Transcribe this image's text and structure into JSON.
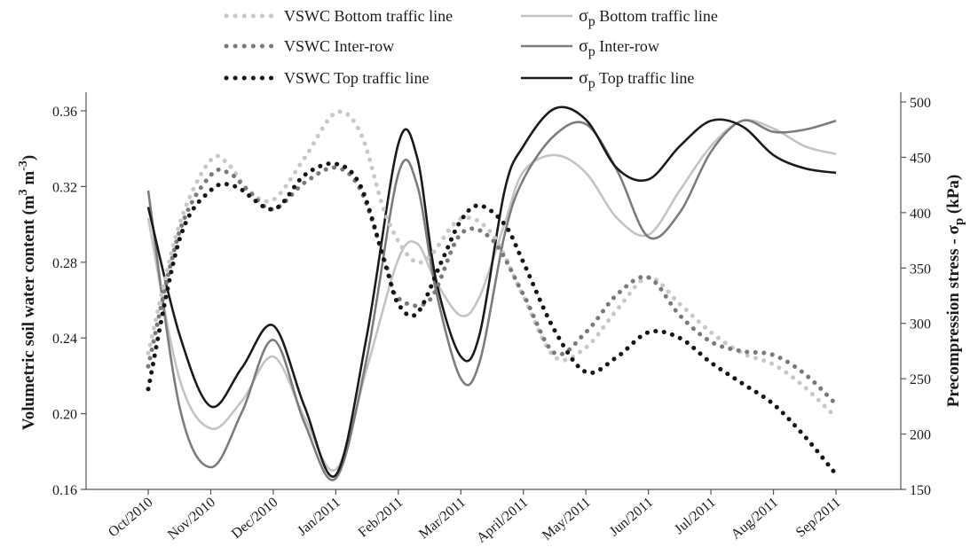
{
  "chart_data": {
    "type": "line",
    "title": "",
    "categories": [
      "Oct/2010",
      "Nov/2010",
      "Dec/2010",
      "Jan/2011",
      "Feb/2011",
      "Mar/2011",
      "April/2011",
      "May/2011",
      "Jun/2011",
      "Jul/2011",
      "Aug/2011",
      "Sep/2011"
    ],
    "y_left": {
      "label_prefix": "Volumetric soil water content (m",
      "label_sup1": "3",
      "label_mid": " m",
      "label_sup2": "-3",
      "label_suffix": ")",
      "range": [
        0.16,
        0.37
      ],
      "ticks": [
        "0.16",
        "0.20",
        "0.24",
        "0.28",
        "0.32",
        "0.36"
      ],
      "tick_values": [
        0.16,
        0.2,
        0.24,
        0.28,
        0.32,
        0.36
      ]
    },
    "y_right": {
      "label_prefix": "Precompression stress - ",
      "label_sigma": "σ",
      "label_sub": "p",
      "label_suffix": " (kPa)",
      "range": [
        150,
        510
      ],
      "ticks": [
        "150",
        "200",
        "250",
        "300",
        "350",
        "400",
        "450",
        "500"
      ],
      "tick_values": [
        150,
        200,
        250,
        300,
        350,
        400,
        450,
        500
      ]
    },
    "legend": {
      "placement": "top",
      "items": [
        {
          "sigma": "",
          "sub": "",
          "text": "VSWC Bottom traffic line"
        },
        {
          "sigma": "",
          "sub": "",
          "text": "VSWC Inter-row"
        },
        {
          "sigma": "",
          "sub": "",
          "text": "VSWC Top traffic line"
        },
        {
          "sigma": "σ",
          "sub": "p",
          "text": " Bottom traffic line"
        },
        {
          "sigma": "σ",
          "sub": "p",
          "text": " Inter-row"
        },
        {
          "sigma": "σ",
          "sub": "p",
          "text": " Top traffic line"
        }
      ]
    },
    "series": [
      {
        "name": "VSWC Bottom traffic line",
        "axis": "left",
        "style": "dotted",
        "color": "#c8c8c8",
        "points": [
          [
            0,
            0.232
          ],
          [
            0.5,
            0.3
          ],
          [
            1,
            0.334
          ],
          [
            1.3,
            0.331
          ],
          [
            1.6,
            0.318
          ],
          [
            2,
            0.313
          ],
          [
            2.5,
            0.335
          ],
          [
            3,
            0.359
          ],
          [
            3.4,
            0.348
          ],
          [
            3.8,
            0.305
          ],
          [
            4.2,
            0.282
          ],
          [
            4.5,
            0.283
          ],
          [
            5,
            0.303
          ],
          [
            5.5,
            0.295
          ],
          [
            6,
            0.262
          ],
          [
            6.5,
            0.23
          ],
          [
            7,
            0.235
          ],
          [
            7.5,
            0.255
          ],
          [
            8,
            0.272
          ],
          [
            8.5,
            0.258
          ],
          [
            9,
            0.243
          ],
          [
            9.5,
            0.232
          ],
          [
            10,
            0.226
          ],
          [
            10.5,
            0.214
          ],
          [
            11,
            0.198
          ]
        ]
      },
      {
        "name": "VSWC Inter-row",
        "axis": "left",
        "style": "dotted",
        "color": "#7a7a7a",
        "points": [
          [
            0,
            0.225
          ],
          [
            0.5,
            0.296
          ],
          [
            1,
            0.326
          ],
          [
            1.3,
            0.327
          ],
          [
            1.6,
            0.318
          ],
          [
            2,
            0.308
          ],
          [
            2.5,
            0.322
          ],
          [
            3,
            0.33
          ],
          [
            3.4,
            0.318
          ],
          [
            3.8,
            0.279
          ],
          [
            4,
            0.261
          ],
          [
            4.5,
            0.26
          ],
          [
            5,
            0.295
          ],
          [
            5.5,
            0.292
          ],
          [
            6,
            0.263
          ],
          [
            6.5,
            0.232
          ],
          [
            7,
            0.243
          ],
          [
            7.5,
            0.263
          ],
          [
            8,
            0.272
          ],
          [
            8.5,
            0.252
          ],
          [
            9,
            0.238
          ],
          [
            9.5,
            0.233
          ],
          [
            10,
            0.231
          ],
          [
            10.5,
            0.221
          ],
          [
            11,
            0.205
          ]
        ]
      },
      {
        "name": "VSWC Top traffic line",
        "axis": "left",
        "style": "dotted",
        "color": "#151515",
        "points": [
          [
            0,
            0.213
          ],
          [
            0.5,
            0.292
          ],
          [
            1,
            0.318
          ],
          [
            1.4,
            0.32
          ],
          [
            2,
            0.308
          ],
          [
            2.5,
            0.326
          ],
          [
            3,
            0.332
          ],
          [
            3.4,
            0.32
          ],
          [
            3.8,
            0.278
          ],
          [
            4,
            0.258
          ],
          [
            4.3,
            0.253
          ],
          [
            4.7,
            0.281
          ],
          [
            5,
            0.302
          ],
          [
            5.3,
            0.31
          ],
          [
            5.7,
            0.3
          ],
          [
            6,
            0.28
          ],
          [
            6.5,
            0.244
          ],
          [
            7,
            0.222
          ],
          [
            7.5,
            0.23
          ],
          [
            8,
            0.243
          ],
          [
            8.5,
            0.24
          ],
          [
            9,
            0.227
          ],
          [
            9.5,
            0.216
          ],
          [
            10,
            0.205
          ],
          [
            10.5,
            0.188
          ],
          [
            11,
            0.168
          ]
        ]
      },
      {
        "name": "σp Bottom traffic line",
        "axis": "right",
        "style": "solid",
        "color": "#c4c4c4",
        "points": [
          [
            0,
            395
          ],
          [
            0.5,
            250
          ],
          [
            1,
            205
          ],
          [
            1.5,
            230
          ],
          [
            2,
            270
          ],
          [
            2.5,
            215
          ],
          [
            3,
            168
          ],
          [
            3.5,
            260
          ],
          [
            4,
            358
          ],
          [
            4.3,
            372
          ],
          [
            4.6,
            338
          ],
          [
            5,
            307
          ],
          [
            5.3,
            324
          ],
          [
            5.7,
            390
          ],
          [
            6,
            437
          ],
          [
            6.5,
            452
          ],
          [
            7,
            436
          ],
          [
            7.5,
            395
          ],
          [
            8,
            380
          ],
          [
            8.5,
            420
          ],
          [
            9,
            460
          ],
          [
            9.5,
            483
          ],
          [
            10,
            476
          ],
          [
            10.5,
            460
          ],
          [
            11,
            453
          ]
        ]
      },
      {
        "name": "σp Inter-row",
        "axis": "right",
        "style": "solid",
        "color": "#7c7c7c",
        "points": [
          [
            0,
            420
          ],
          [
            0.5,
            225
          ],
          [
            1,
            170
          ],
          [
            1.5,
            220
          ],
          [
            2,
            285
          ],
          [
            2.5,
            210
          ],
          [
            3,
            160
          ],
          [
            3.5,
            270
          ],
          [
            4,
            435
          ],
          [
            4.3,
            425
          ],
          [
            4.6,
            330
          ],
          [
            5,
            250
          ],
          [
            5.3,
            265
          ],
          [
            5.7,
            380
          ],
          [
            6,
            430
          ],
          [
            6.5,
            470
          ],
          [
            7,
            480
          ],
          [
            7.5,
            438
          ],
          [
            8,
            378
          ],
          [
            8.5,
            400
          ],
          [
            9,
            455
          ],
          [
            9.5,
            483
          ],
          [
            10,
            473
          ],
          [
            10.5,
            475
          ],
          [
            11,
            483
          ]
        ]
      },
      {
        "name": "σp Top traffic line",
        "axis": "right",
        "style": "solid",
        "color": "#1b1b1b",
        "points": [
          [
            0,
            405
          ],
          [
            0.5,
            290
          ],
          [
            1,
            225
          ],
          [
            1.5,
            260
          ],
          [
            2,
            298
          ],
          [
            2.5,
            225
          ],
          [
            3,
            163
          ],
          [
            3.5,
            290
          ],
          [
            4,
            462
          ],
          [
            4.3,
            450
          ],
          [
            4.6,
            340
          ],
          [
            5,
            270
          ],
          [
            5.3,
            290
          ],
          [
            5.7,
            420
          ],
          [
            6,
            460
          ],
          [
            6.5,
            494
          ],
          [
            7,
            484
          ],
          [
            7.5,
            440
          ],
          [
            8,
            430
          ],
          [
            8.5,
            460
          ],
          [
            9,
            483
          ],
          [
            9.5,
            478
          ],
          [
            10,
            452
          ],
          [
            10.5,
            440
          ],
          [
            11,
            436
          ]
        ]
      }
    ]
  }
}
